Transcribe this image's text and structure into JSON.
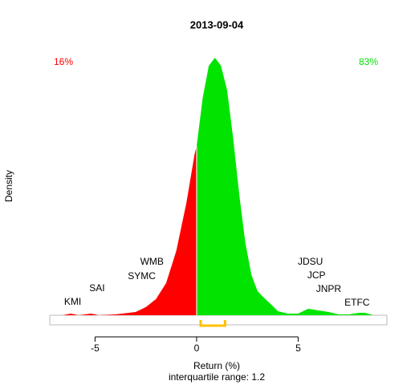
{
  "chart_data": {
    "type": "density",
    "title": "2013-09-04",
    "x_label": "Return (%)",
    "y_label": "Density",
    "subtitle": "interquartile range: 1.2",
    "left_share": "16%",
    "right_share": "83%",
    "left_color": "#ff0000",
    "right_color": "#00e400",
    "split": 0,
    "x": [
      -6.6,
      -6.2,
      -5.8,
      -5.2,
      -4.8,
      -4,
      -3,
      -2.5,
      -2,
      -1.5,
      -1,
      -0.5,
      -0.1,
      0,
      0.3,
      0.6,
      0.9,
      1.2,
      1.5,
      1.8,
      2.1,
      2.4,
      2.7,
      3.0,
      3.3,
      3.6,
      4,
      4.5,
      5.0,
      5.5,
      6,
      6.5,
      7,
      7.5,
      8,
      8.3,
      8.7
    ],
    "values": [
      0,
      0.002,
      0,
      0.002,
      0,
      0.001,
      0.004,
      0.01,
      0.02,
      0.04,
      0.08,
      0.14,
      0.2,
      0.21,
      0.27,
      0.31,
      0.32,
      0.31,
      0.28,
      0.22,
      0.15,
      0.09,
      0.05,
      0.03,
      0.022,
      0.015,
      0.005,
      0.002,
      0.002,
      0.008,
      0.006,
      0.004,
      0.001,
      0.001,
      0.003,
      0.003,
      0
    ],
    "labels": [
      {
        "text": "KMI",
        "x": -6.1
      },
      {
        "text": "SAI",
        "x": -4.9
      },
      {
        "text": "SYMC",
        "x": -2.7
      },
      {
        "text": "WMB",
        "x": -2.2
      },
      {
        "text": "JDSU",
        "x": 5.6
      },
      {
        "text": "JCP",
        "x": 5.9
      },
      {
        "text": "JNPR",
        "x": 6.5
      },
      {
        "text": "ETFC",
        "x": 7.9
      }
    ],
    "iqr": [
      0.2,
      1.4
    ],
    "iqr_color": "#ffc000",
    "xlim": [
      -7.23,
      9.37
    ],
    "ylim": [
      -0.012,
      0.33
    ],
    "xticks": [
      -5,
      0,
      5
    ]
  }
}
